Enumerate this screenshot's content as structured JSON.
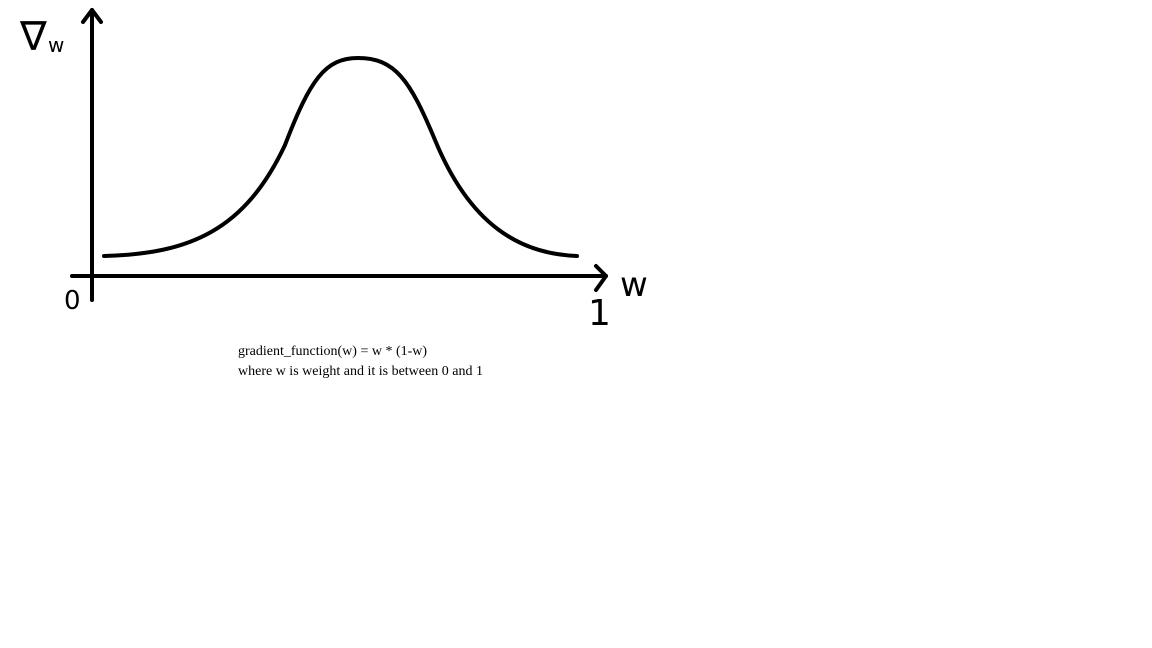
{
  "labels": {
    "y_axis": "∇",
    "y_axis_sub": "w",
    "x_axis": "w",
    "origin": "0",
    "x_end": "1"
  },
  "caption": {
    "line1": "gradient_function(w) = w * (1-w)",
    "line2": "where w is weight and it is between 0 and 1"
  },
  "colors": {
    "ink": "#000000",
    "background": "#ffffff"
  }
}
